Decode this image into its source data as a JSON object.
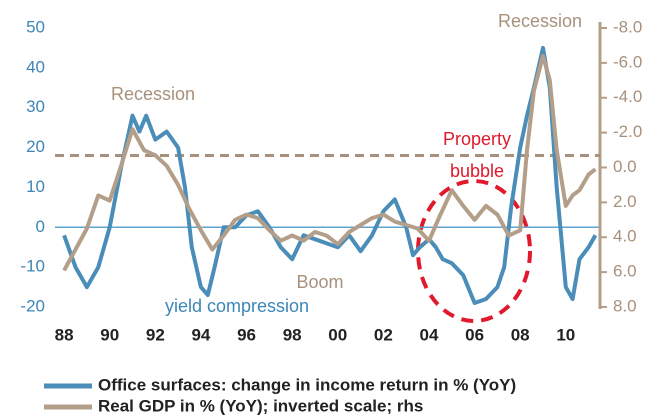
{
  "chart_data": {
    "type": "line",
    "xlim": [
      1987.6,
      2011.5
    ],
    "xticks": [
      {
        "value": 1988,
        "label": "88"
      },
      {
        "value": 1990,
        "label": "90"
      },
      {
        "value": 1992,
        "label": "92"
      },
      {
        "value": 1994,
        "label": "94"
      },
      {
        "value": 1996,
        "label": "96"
      },
      {
        "value": 1998,
        "label": "98"
      },
      {
        "value": 2000,
        "label": "00"
      },
      {
        "value": 2002,
        "label": "02"
      },
      {
        "value": 2004,
        "label": "04"
      },
      {
        "value": 2006,
        "label": "06"
      },
      {
        "value": 2008,
        "label": "08"
      },
      {
        "value": 2010,
        "label": "10"
      }
    ],
    "ylim": [
      -20,
      50
    ],
    "yticks": [
      -20,
      -10,
      0,
      10,
      20,
      30,
      40,
      50
    ],
    "y2lim": [
      -8,
      8
    ],
    "y2_inverted": true,
    "y2ticks": [
      {
        "value": -8,
        "label": "-8.0"
      },
      {
        "value": -6,
        "label": "-6.0"
      },
      {
        "value": -4,
        "label": "-4.0"
      },
      {
        "value": -2,
        "label": "-2.0"
      },
      {
        "value": 0,
        "label": "0.0"
      },
      {
        "value": 2,
        "label": "2.0"
      },
      {
        "value": 4,
        "label": "4.0"
      },
      {
        "value": 6,
        "label": "6.0"
      },
      {
        "value": 8,
        "label": "8.0"
      }
    ],
    "reference_line": 18,
    "series": [
      {
        "name": "Office surfaces: change in income return in % (YoY)",
        "color": "#4a8db8",
        "x": [
          1988,
          1988.5,
          1989,
          1989.5,
          1990,
          1990.5,
          1991,
          1991.3,
          1991.6,
          1992,
          1992.5,
          1993,
          1993.3,
          1993.6,
          1994,
          1994.3,
          1994.6,
          1995,
          1995.5,
          1996,
          1996.5,
          1997,
          1997.5,
          1998,
          1998.5,
          1999,
          1999.5,
          2000,
          2000.5,
          2001,
          2001.5,
          2002,
          2002.5,
          2003,
          2003.3,
          2003.6,
          2004,
          2004.3,
          2004.6,
          2005,
          2005.5,
          2006,
          2006.5,
          2007,
          2007.3,
          2007.6,
          2008,
          2008.3,
          2008.6,
          2009,
          2009.3,
          2009.6,
          2010,
          2010.3,
          2010.6,
          2011,
          2011.3
        ],
        "values": [
          -2,
          -10,
          -15,
          -10,
          0,
          15,
          28,
          24,
          28,
          22,
          24,
          20,
          10,
          -5,
          -15,
          -17,
          -10,
          0,
          0,
          3,
          4,
          0,
          -5,
          -8,
          -2,
          -3,
          -4,
          -5,
          -2,
          -6,
          -2,
          4,
          7,
          0,
          -7,
          -5,
          -3,
          -5,
          -8,
          -9,
          -12,
          -19,
          -18,
          -15,
          -10,
          5,
          20,
          28,
          35,
          45,
          35,
          10,
          -15,
          -18,
          -8,
          -5,
          -2
        ]
      },
      {
        "name": "Real GDP in % (YoY); inverted scale; rhs",
        "color": "#b39e89",
        "axis": "y2",
        "x": [
          1988,
          1988.5,
          1989,
          1989.5,
          1990,
          1990.5,
          1991,
          1991.5,
          1992,
          1992.5,
          1993,
          1993.5,
          1994,
          1994.5,
          1995,
          1995.5,
          1996,
          1996.5,
          1997,
          1997.5,
          1998,
          1998.5,
          1999,
          1999.5,
          2000,
          2000.5,
          2001,
          2001.5,
          2002,
          2002.5,
          2003,
          2003.5,
          2004,
          2004.5,
          2005,
          2005.5,
          2006,
          2006.5,
          2007,
          2007.5,
          2008,
          2008.3,
          2008.6,
          2009,
          2009.3,
          2009.6,
          2010,
          2010.3,
          2010.6,
          2011,
          2011.3
        ],
        "values": [
          5.9,
          4.7,
          3.5,
          1.6,
          1.9,
          -0.1,
          -2.2,
          -1.0,
          -0.7,
          -0.1,
          1.0,
          2.4,
          3.6,
          4.7,
          3.9,
          3.0,
          2.7,
          2.9,
          3.6,
          4.2,
          3.9,
          4.2,
          3.7,
          3.9,
          4.4,
          3.7,
          3.3,
          2.9,
          2.7,
          3.1,
          3.3,
          3.5,
          4.2,
          2.7,
          1.3,
          2.2,
          3.0,
          2.2,
          2.7,
          3.9,
          3.6,
          -1.0,
          -4.4,
          -6.4,
          -5.0,
          -1.0,
          2.2,
          1.6,
          1.3,
          0.4,
          0.1
        ]
      }
    ],
    "annotations": [
      "Recession",
      "Recession",
      "Boom",
      "yield compression",
      "Property",
      "bubble"
    ]
  }
}
